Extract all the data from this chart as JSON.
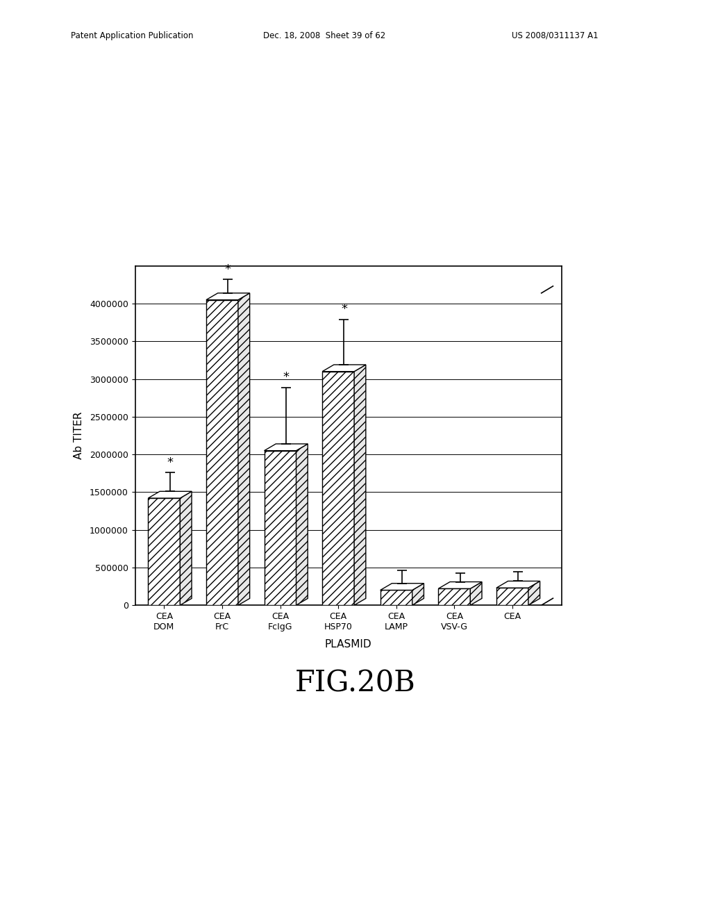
{
  "categories": [
    "CEA\nDOM",
    "CEA\nFrC",
    "CEA\nFcIgG",
    "CEA\nHSP70",
    "CEA\nLAMP",
    "CEA\nVSV-G",
    "CEA"
  ],
  "values": [
    1420000,
    4050000,
    2050000,
    3100000,
    200000,
    220000,
    230000
  ],
  "errors": [
    250000,
    180000,
    750000,
    600000,
    170000,
    120000,
    120000
  ],
  "has_star": [
    true,
    true,
    true,
    true,
    false,
    false,
    false
  ],
  "ylim": [
    0,
    4500000
  ],
  "yticks": [
    0,
    500000,
    1000000,
    1500000,
    2000000,
    2500000,
    3000000,
    3500000,
    4000000
  ],
  "ylabel": "Ab TITER",
  "xlabel": "PLASMID",
  "title": "FIG.20B",
  "bar_color": "white",
  "bar_edge_color": "black",
  "figure_size": [
    10.24,
    13.2
  ],
  "dpi": 100,
  "header_left": "Patent Application Publication",
  "header_mid": "Dec. 18, 2008  Sheet 39 of 62",
  "header_right": "US 2008/0311137 A1"
}
